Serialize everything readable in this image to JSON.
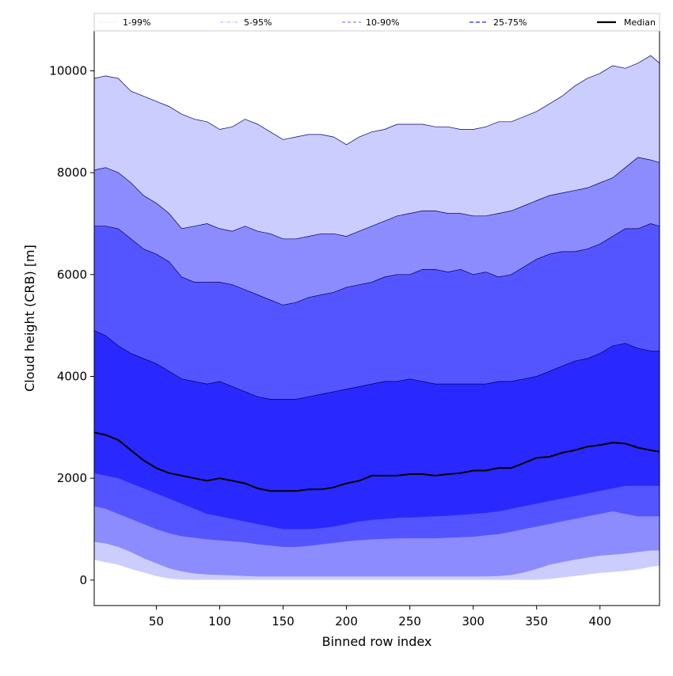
{
  "chart_data": {
    "type": "area",
    "title": "",
    "xlabel": "Binned row index",
    "ylabel": "Cloud height (CRB) [m]",
    "xlim": [
      1,
      447
    ],
    "ylim": [
      -500,
      10800
    ],
    "xticks": [
      50,
      100,
      150,
      200,
      250,
      300,
      350,
      400
    ],
    "yticks": [
      0,
      2000,
      4000,
      6000,
      8000,
      10000
    ],
    "grid": false,
    "legend_position": "top",
    "legend": [
      {
        "label": "1-99%",
        "style": "dotted-thin",
        "color": "#c8c8ff"
      },
      {
        "label": "5-95%",
        "style": "dashdot-thin",
        "color": "#9999ee"
      },
      {
        "label": "10-90%",
        "style": "dashed",
        "color": "#8080ff"
      },
      {
        "label": "25-75%",
        "style": "dashed-thick",
        "color": "#4a4aff"
      },
      {
        "label": "Median",
        "style": "solid",
        "color": "#000000"
      }
    ],
    "x": [
      1,
      10,
      20,
      30,
      40,
      50,
      60,
      70,
      80,
      90,
      100,
      110,
      120,
      130,
      140,
      150,
      160,
      170,
      180,
      190,
      200,
      210,
      220,
      230,
      240,
      250,
      260,
      270,
      280,
      290,
      300,
      310,
      320,
      330,
      340,
      350,
      360,
      370,
      380,
      390,
      400,
      410,
      420,
      430,
      440,
      447
    ],
    "bands": [
      {
        "name": "1-99%",
        "color": "#cccdff",
        "lower": [
          400,
          350,
          300,
          220,
          150,
          80,
          30,
          10,
          5,
          5,
          5,
          5,
          5,
          5,
          5,
          5,
          5,
          5,
          5,
          5,
          5,
          5,
          5,
          5,
          5,
          5,
          5,
          5,
          5,
          5,
          5,
          5,
          5,
          5,
          5,
          5,
          20,
          50,
          80,
          110,
          140,
          160,
          180,
          210,
          260,
          280
        ],
        "upper": [
          9850,
          9900,
          9850,
          9600,
          9500,
          9400,
          9300,
          9150,
          9050,
          9000,
          8850,
          8900,
          9050,
          8950,
          8800,
          8650,
          8700,
          8750,
          8750,
          8700,
          8550,
          8700,
          8800,
          8850,
          8950,
          8950,
          8950,
          8900,
          8900,
          8850,
          8850,
          8900,
          9000,
          9000,
          9100,
          9200,
          9350,
          9500,
          9700,
          9850,
          9950,
          10100,
          10050,
          10150,
          10300,
          10150
        ]
      },
      {
        "name": "5-95%",
        "color": "#8c8cff",
        "lower": [
          750,
          720,
          650,
          550,
          430,
          330,
          230,
          170,
          130,
          110,
          100,
          90,
          80,
          70,
          70,
          70,
          70,
          70,
          70,
          70,
          70,
          70,
          70,
          70,
          70,
          70,
          70,
          70,
          70,
          70,
          70,
          70,
          80,
          100,
          150,
          220,
          300,
          350,
          400,
          440,
          480,
          500,
          520,
          550,
          580,
          580
        ],
        "upper": [
          8050,
          8100,
          8000,
          7800,
          7550,
          7400,
          7200,
          6900,
          6950,
          7000,
          6900,
          6850,
          6950,
          6850,
          6800,
          6700,
          6700,
          6750,
          6800,
          6800,
          6750,
          6850,
          6950,
          7050,
          7150,
          7200,
          7250,
          7250,
          7200,
          7200,
          7150,
          7150,
          7200,
          7250,
          7350,
          7450,
          7550,
          7600,
          7650,
          7700,
          7800,
          7900,
          8100,
          8300,
          8250,
          8200
        ]
      },
      {
        "name": "10-90%",
        "color": "#5555ff",
        "lower": [
          1450,
          1400,
          1300,
          1200,
          1100,
          1000,
          920,
          860,
          830,
          800,
          780,
          760,
          740,
          700,
          680,
          650,
          650,
          670,
          700,
          730,
          760,
          780,
          800,
          810,
          820,
          820,
          820,
          820,
          830,
          840,
          850,
          880,
          900,
          950,
          1000,
          1050,
          1100,
          1150,
          1200,
          1250,
          1300,
          1350,
          1300,
          1250,
          1250,
          1250
        ],
        "upper": [
          6950,
          6950,
          6900,
          6700,
          6500,
          6400,
          6250,
          5950,
          5850,
          5850,
          5850,
          5800,
          5700,
          5600,
          5500,
          5400,
          5450,
          5550,
          5600,
          5650,
          5750,
          5800,
          5850,
          5950,
          6000,
          6000,
          6100,
          6100,
          6050,
          6100,
          6000,
          6050,
          5950,
          6000,
          6150,
          6300,
          6400,
          6450,
          6450,
          6500,
          6600,
          6750,
          6900,
          6900,
          7000,
          6950
        ]
      },
      {
        "name": "25-75%",
        "color": "#2929ff",
        "lower": [
          2100,
          2050,
          2000,
          1900,
          1800,
          1700,
          1600,
          1500,
          1400,
          1300,
          1250,
          1200,
          1150,
          1100,
          1050,
          1000,
          1000,
          1000,
          1020,
          1050,
          1100,
          1150,
          1180,
          1200,
          1220,
          1230,
          1240,
          1250,
          1260,
          1280,
          1300,
          1320,
          1350,
          1400,
          1450,
          1500,
          1550,
          1600,
          1650,
          1700,
          1750,
          1800,
          1850,
          1850,
          1850,
          1850
        ],
        "upper": [
          4900,
          4800,
          4600,
          4450,
          4350,
          4250,
          4100,
          3950,
          3900,
          3850,
          3900,
          3800,
          3700,
          3600,
          3550,
          3550,
          3550,
          3600,
          3650,
          3700,
          3750,
          3800,
          3850,
          3900,
          3900,
          3950,
          3900,
          3850,
          3850,
          3850,
          3850,
          3850,
          3900,
          3900,
          3950,
          4000,
          4100,
          4200,
          4300,
          4350,
          4450,
          4600,
          4650,
          4550,
          4500,
          4500
        ]
      }
    ],
    "series": [
      {
        "name": "Median",
        "color": "#000000",
        "values": [
          2900,
          2850,
          2750,
          2550,
          2350,
          2200,
          2100,
          2050,
          2000,
          1950,
          2000,
          1950,
          1900,
          1800,
          1750,
          1750,
          1750,
          1780,
          1780,
          1820,
          1900,
          1950,
          2050,
          2050,
          2050,
          2080,
          2080,
          2050,
          2080,
          2100,
          2150,
          2150,
          2200,
          2200,
          2300,
          2400,
          2420,
          2500,
          2550,
          2620,
          2650,
          2700,
          2680,
          2600,
          2550,
          2520
        ]
      }
    ]
  }
}
